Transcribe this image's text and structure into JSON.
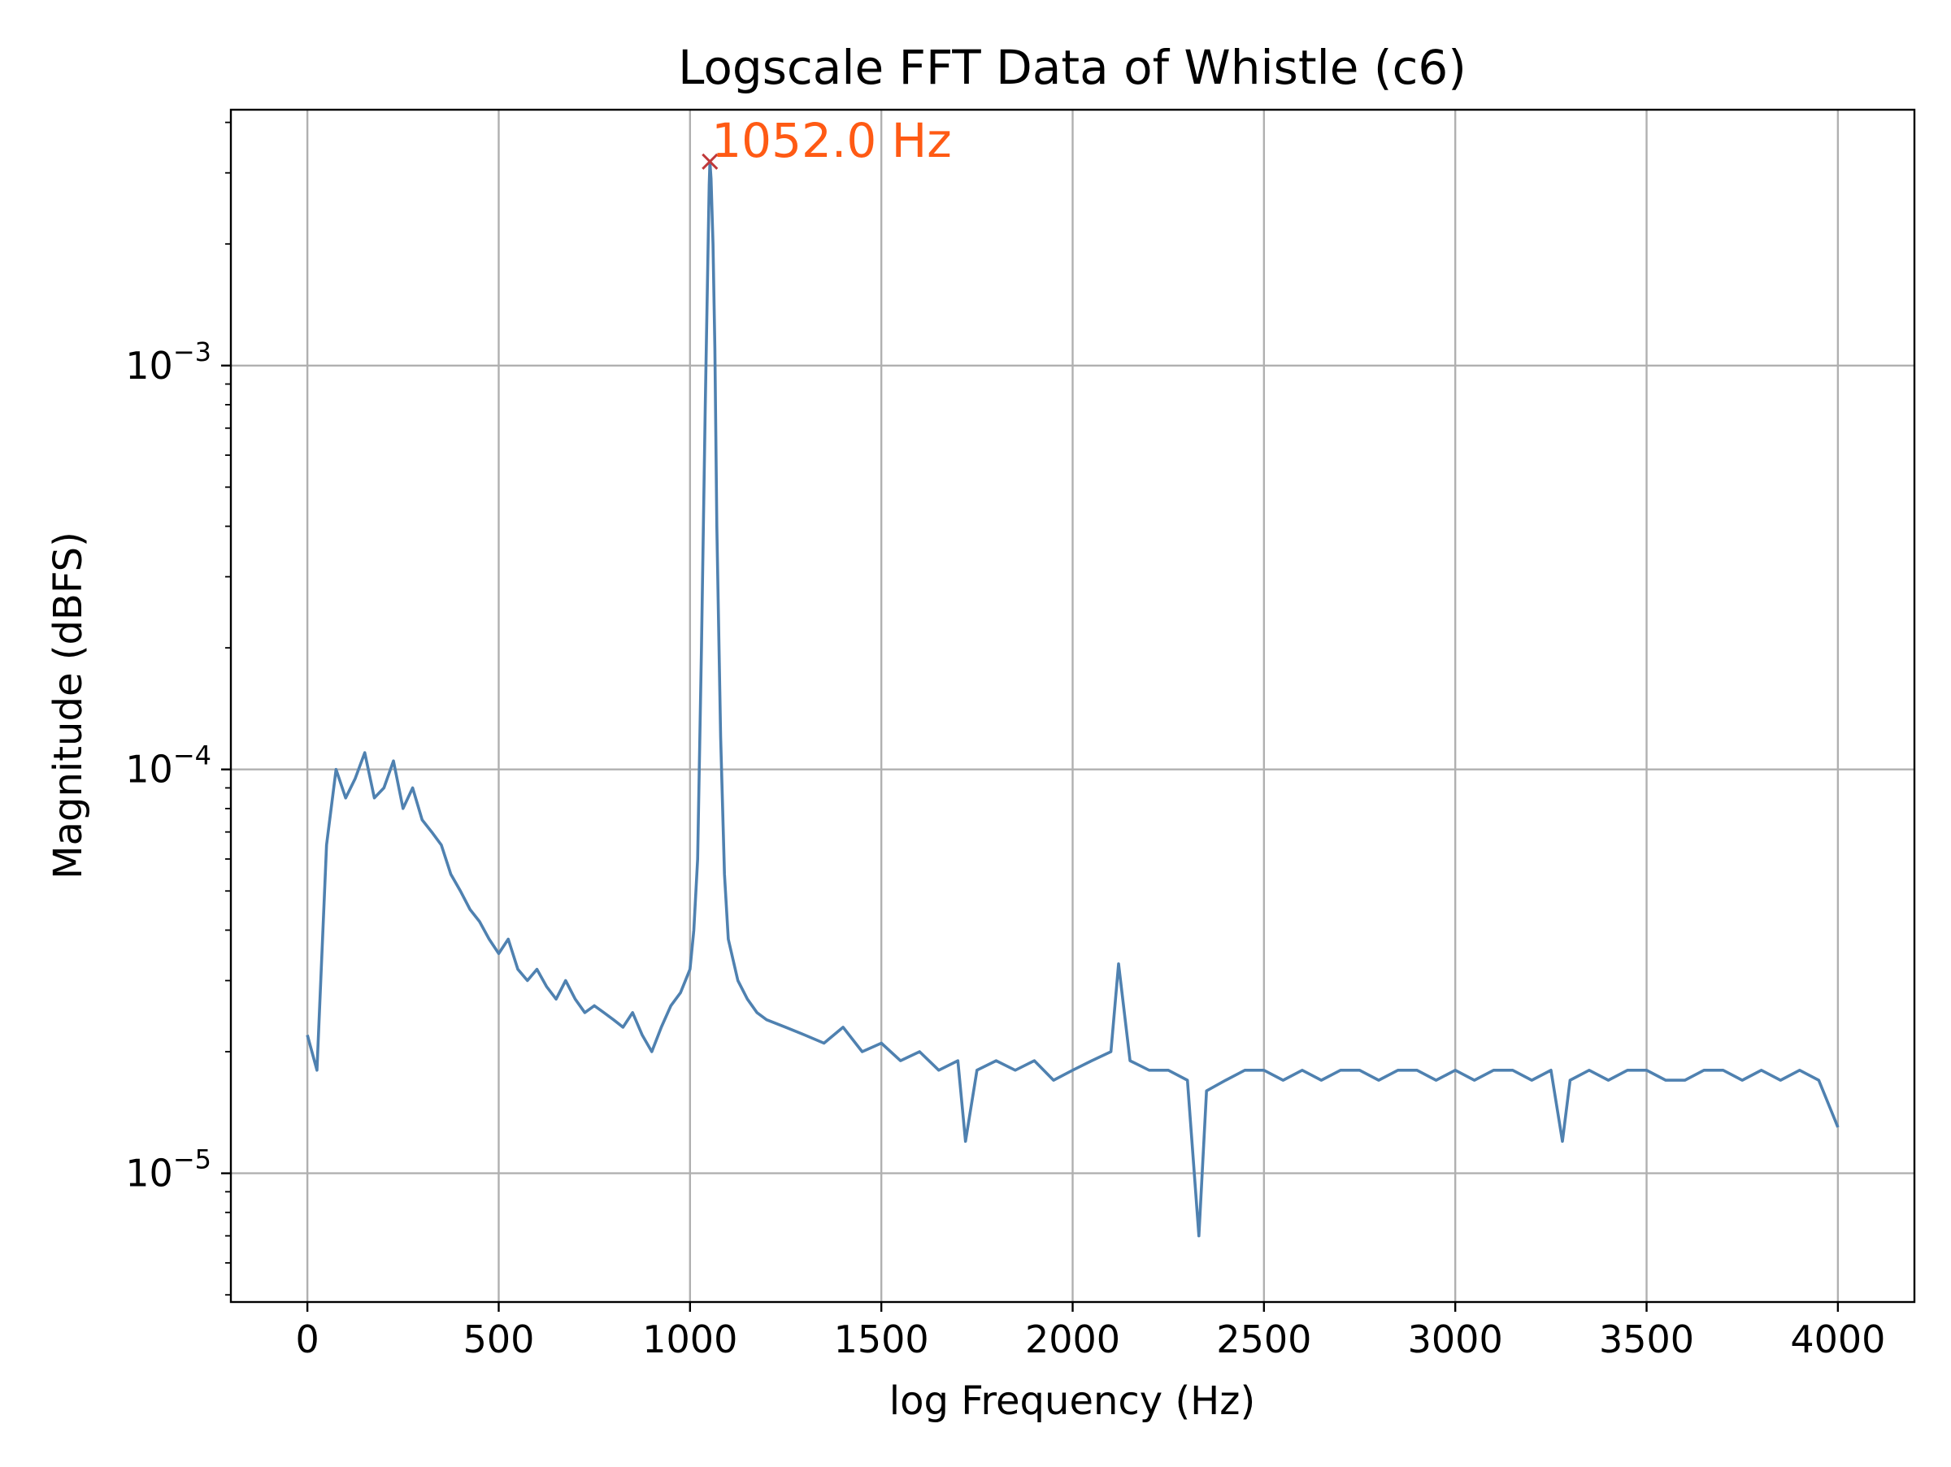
{
  "chart_data": {
    "type": "line",
    "title": "Logscale FFT Data of Whistle (c6)",
    "xlabel": "log Frequency (Hz)",
    "ylabel": "Magnitude (dBFS)",
    "xlim": [
      -200,
      4200
    ],
    "ylim": [
      4.8e-06,
      0.0043
    ],
    "yscale": "log",
    "grid": true,
    "x_ticks": [
      {
        "value": 0,
        "label": "0"
      },
      {
        "value": 500,
        "label": "500"
      },
      {
        "value": 1000,
        "label": "1000"
      },
      {
        "value": 1500,
        "label": "1500"
      },
      {
        "value": 2000,
        "label": "2000"
      },
      {
        "value": 2500,
        "label": "2500"
      },
      {
        "value": 3000,
        "label": "3000"
      },
      {
        "value": 3500,
        "label": "3500"
      },
      {
        "value": 4000,
        "label": "4000"
      }
    ],
    "y_ticks": [
      {
        "value": 1e-05,
        "base": "10",
        "exp": "−5"
      },
      {
        "value": 0.0001,
        "base": "10",
        "exp": "−4"
      },
      {
        "value": 0.001,
        "base": "10",
        "exp": "−3"
      }
    ],
    "series": [
      {
        "color": "#4f81b0",
        "x": [
          0,
          25,
          50,
          75,
          100,
          125,
          150,
          175,
          200,
          225,
          250,
          275,
          300,
          325,
          350,
          375,
          400,
          425,
          450,
          475,
          500,
          525,
          550,
          575,
          600,
          625,
          650,
          675,
          700,
          725,
          750,
          775,
          800,
          825,
          850,
          875,
          900,
          925,
          950,
          975,
          1000,
          1010,
          1020,
          1030,
          1040,
          1045,
          1050,
          1052,
          1055,
          1060,
          1065,
          1070,
          1080,
          1090,
          1100,
          1125,
          1150,
          1175,
          1200,
          1250,
          1300,
          1350,
          1400,
          1450,
          1500,
          1550,
          1600,
          1650,
          1700,
          1720,
          1750,
          1800,
          1850,
          1900,
          1950,
          2000,
          2050,
          2100,
          2120,
          2150,
          2200,
          2250,
          2300,
          2330,
          2350,
          2400,
          2450,
          2500,
          2550,
          2600,
          2650,
          2700,
          2750,
          2800,
          2850,
          2900,
          2950,
          3000,
          3050,
          3100,
          3150,
          3200,
          3250,
          3280,
          3300,
          3350,
          3400,
          3450,
          3500,
          3550,
          3600,
          3650,
          3700,
          3750,
          3800,
          3850,
          3900,
          3950,
          4000
        ],
        "y": [
          2.2e-05,
          1.8e-05,
          6.5e-05,
          0.0001,
          8.5e-05,
          9.5e-05,
          0.00011,
          8.5e-05,
          9e-05,
          0.000105,
          8e-05,
          9e-05,
          7.5e-05,
          7e-05,
          6.5e-05,
          5.5e-05,
          5e-05,
          4.5e-05,
          4.2e-05,
          3.8e-05,
          3.5e-05,
          3.8e-05,
          3.2e-05,
          3e-05,
          3.2e-05,
          2.9e-05,
          2.7e-05,
          3e-05,
          2.7e-05,
          2.5e-05,
          2.6e-05,
          2.5e-05,
          2.4e-05,
          2.3e-05,
          2.5e-05,
          2.2e-05,
          2e-05,
          2.3e-05,
          2.6e-05,
          2.8e-05,
          3.2e-05,
          4e-05,
          6e-05,
          0.0002,
          0.0008,
          0.0015,
          0.0028,
          0.0032,
          0.0029,
          0.002,
          0.0011,
          0.0004,
          0.00012,
          5.5e-05,
          3.8e-05,
          3e-05,
          2.7e-05,
          2.5e-05,
          2.4e-05,
          2.3e-05,
          2.2e-05,
          2.1e-05,
          2.3e-05,
          2e-05,
          2.1e-05,
          1.9e-05,
          2e-05,
          1.8e-05,
          1.9e-05,
          1.2e-05,
          1.8e-05,
          1.9e-05,
          1.8e-05,
          1.9e-05,
          1.7e-05,
          1.8e-05,
          1.9e-05,
          2e-05,
          3.3e-05,
          1.9e-05,
          1.8e-05,
          1.8e-05,
          1.7e-05,
          7e-06,
          1.6e-05,
          1.7e-05,
          1.8e-05,
          1.8e-05,
          1.7e-05,
          1.8e-05,
          1.7e-05,
          1.8e-05,
          1.8e-05,
          1.7e-05,
          1.8e-05,
          1.8e-05,
          1.7e-05,
          1.8e-05,
          1.7e-05,
          1.8e-05,
          1.8e-05,
          1.7e-05,
          1.8e-05,
          1.2e-05,
          1.7e-05,
          1.8e-05,
          1.7e-05,
          1.8e-05,
          1.8e-05,
          1.7e-05,
          1.7e-05,
          1.8e-05,
          1.8e-05,
          1.7e-05,
          1.8e-05,
          1.7e-05,
          1.8e-05,
          1.7e-05,
          1.3e-05
        ]
      }
    ],
    "peak": {
      "x": 1052.0,
      "y": 0.0032,
      "label": "1052.0 Hz",
      "marker_color": "#c0393b",
      "label_color": "#ff5a14"
    }
  }
}
